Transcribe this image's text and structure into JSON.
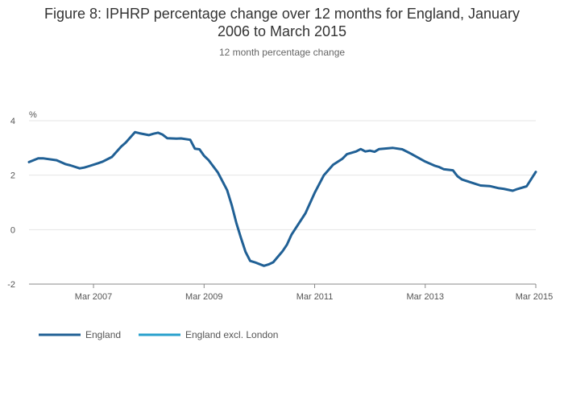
{
  "chart_data": {
    "type": "line",
    "title_line1": "Figure 8: IPHRP percentage change over 12 months for England, January",
    "title_line2": "2006 to March 2015",
    "subtitle": "12 month percentage change",
    "ylabel": "%",
    "ylim": [
      -2,
      4
    ],
    "yticks": [
      -2,
      0,
      2,
      4
    ],
    "xrange": [
      "2006-01",
      "2015-03"
    ],
    "xticks": [
      {
        "date": "2007-03",
        "label": "Mar 2007"
      },
      {
        "date": "2009-03",
        "label": "Mar 2009"
      },
      {
        "date": "2011-03",
        "label": "Mar 2011"
      },
      {
        "date": "2013-03",
        "label": "Mar 2013"
      },
      {
        "date": "2015-03",
        "label": "Mar 2015"
      }
    ],
    "grid": true,
    "legend_position": "bottom-left",
    "series": [
      {
        "name": "England",
        "color": "#206095",
        "x": [
          "2006-01",
          "2006-03",
          "2006-04",
          "2006-07",
          "2006-09",
          "2006-10",
          "2006-12",
          "2007-01",
          "2007-02",
          "2007-04",
          "2007-05",
          "2007-07",
          "2007-09",
          "2007-10",
          "2007-12",
          "2008-01",
          "2008-03",
          "2008-04",
          "2008-05",
          "2008-06",
          "2008-07",
          "2008-09",
          "2008-10",
          "2008-12",
          "2009-01",
          "2009-02",
          "2009-03",
          "2009-04",
          "2009-06",
          "2009-08",
          "2009-09",
          "2009-10",
          "2009-11",
          "2009-12",
          "2010-01",
          "2010-02",
          "2010-04",
          "2010-05",
          "2010-06",
          "2010-08",
          "2010-09",
          "2010-10",
          "2011-01",
          "2011-03",
          "2011-05",
          "2011-07",
          "2011-09",
          "2011-10",
          "2011-12",
          "2012-01",
          "2012-02",
          "2012-03",
          "2012-04",
          "2012-05",
          "2012-06",
          "2012-08",
          "2012-10",
          "2012-12",
          "2013-03",
          "2013-05",
          "2013-06",
          "2013-07",
          "2013-09",
          "2013-10",
          "2013-11",
          "2014-01",
          "2014-03",
          "2014-05",
          "2014-07",
          "2014-08",
          "2014-10",
          "2014-11",
          "2015-01",
          "2015-03"
        ],
        "values": [
          2.48,
          2.62,
          2.62,
          2.55,
          2.4,
          2.36,
          2.25,
          2.28,
          2.33,
          2.44,
          2.5,
          2.67,
          3.05,
          3.2,
          3.58,
          3.54,
          3.47,
          3.52,
          3.56,
          3.49,
          3.36,
          3.34,
          3.35,
          3.3,
          2.97,
          2.95,
          2.71,
          2.55,
          2.1,
          1.45,
          0.9,
          0.25,
          -0.3,
          -0.82,
          -1.15,
          -1.2,
          -1.33,
          -1.28,
          -1.2,
          -0.8,
          -0.55,
          -0.18,
          0.6,
          1.35,
          2.0,
          2.38,
          2.6,
          2.77,
          2.87,
          2.96,
          2.87,
          2.9,
          2.86,
          2.96,
          2.97,
          3.0,
          2.95,
          2.78,
          2.5,
          2.35,
          2.3,
          2.22,
          2.18,
          1.96,
          1.84,
          1.73,
          1.62,
          1.6,
          1.52,
          1.5,
          1.43,
          1.49,
          1.59,
          2.12
        ]
      },
      {
        "name": "England excl. London",
        "color": "#27a0cc",
        "x": [],
        "values": []
      }
    ]
  }
}
